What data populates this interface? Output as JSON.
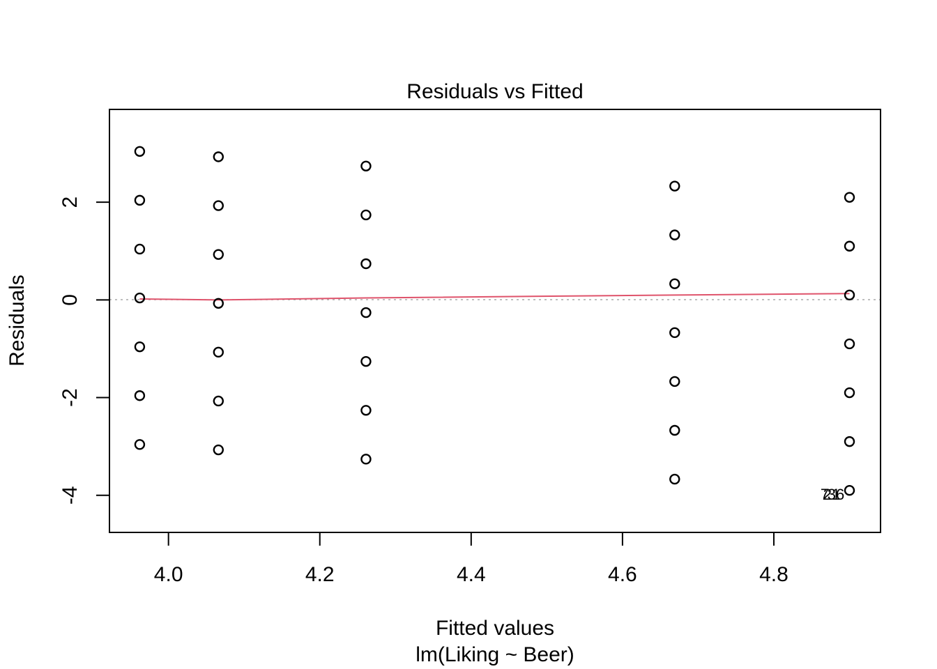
{
  "chart_data": {
    "type": "scatter",
    "title": "Residuals vs Fitted",
    "xlabel": "Fitted values",
    "xlabel_sub": "lm(Liking ~ Beer)",
    "ylabel": "Residuals",
    "xlim": [
      3.922,
      4.941
    ],
    "ylim": [
      -4.76,
      3.9
    ],
    "xticks": [
      4.0,
      4.2,
      4.4,
      4.6,
      4.8
    ],
    "xtick_labels": [
      "4.0",
      "4.2",
      "4.4",
      "4.6",
      "4.8"
    ],
    "yticks": [
      -4,
      -2,
      0,
      2
    ],
    "ytick_labels": [
      "-4",
      "-2",
      "0",
      "2"
    ],
    "points": [
      {
        "x": 3.962,
        "y": 3.04
      },
      {
        "x": 3.962,
        "y": 2.04
      },
      {
        "x": 3.962,
        "y": 1.04
      },
      {
        "x": 3.962,
        "y": 0.04
      },
      {
        "x": 3.962,
        "y": -0.96
      },
      {
        "x": 3.962,
        "y": -1.96
      },
      {
        "x": 3.962,
        "y": -2.96
      },
      {
        "x": 4.066,
        "y": 2.93
      },
      {
        "x": 4.066,
        "y": 1.93
      },
      {
        "x": 4.066,
        "y": 0.93
      },
      {
        "x": 4.066,
        "y": -0.07
      },
      {
        "x": 4.066,
        "y": -1.07
      },
      {
        "x": 4.066,
        "y": -2.07
      },
      {
        "x": 4.066,
        "y": -3.07
      },
      {
        "x": 4.261,
        "y": 2.74
      },
      {
        "x": 4.261,
        "y": 1.74
      },
      {
        "x": 4.261,
        "y": 0.74
      },
      {
        "x": 4.261,
        "y": -0.26
      },
      {
        "x": 4.261,
        "y": -1.26
      },
      {
        "x": 4.261,
        "y": -2.26
      },
      {
        "x": 4.261,
        "y": -3.26
      },
      {
        "x": 4.669,
        "y": 2.33
      },
      {
        "x": 4.669,
        "y": 1.33
      },
      {
        "x": 4.669,
        "y": 0.33
      },
      {
        "x": 4.669,
        "y": -0.67
      },
      {
        "x": 4.669,
        "y": -1.67
      },
      {
        "x": 4.669,
        "y": -2.67
      },
      {
        "x": 4.669,
        "y": -3.67
      },
      {
        "x": 4.9,
        "y": 2.1
      },
      {
        "x": 4.9,
        "y": 1.1
      },
      {
        "x": 4.9,
        "y": 0.1
      },
      {
        "x": 4.9,
        "y": -0.9
      },
      {
        "x": 4.9,
        "y": -1.9
      },
      {
        "x": 4.9,
        "y": -2.9
      },
      {
        "x": 4.9,
        "y": -3.9
      }
    ],
    "smoother": {
      "color": "#DF536B",
      "x": [
        3.962,
        4.066,
        4.261,
        4.669,
        4.9
      ],
      "y": [
        0.02,
        0.0,
        0.04,
        0.1,
        0.13
      ]
    },
    "reference_line": {
      "y": 0,
      "style": "dotted",
      "color": "#A9A9A9"
    },
    "annotations": [
      {
        "x": 4.9,
        "y": -3.9,
        "labels": [
          "7",
          "21",
          "36"
        ]
      }
    ],
    "grid": false,
    "legend": "none"
  }
}
